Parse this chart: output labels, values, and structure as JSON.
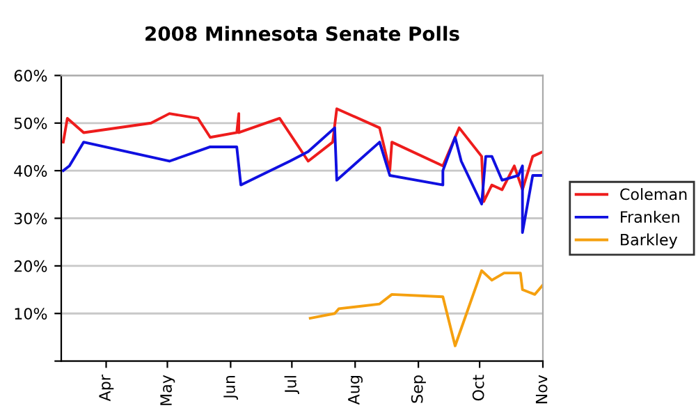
{
  "chart_data": {
    "type": "line",
    "title": "2008 Minnesota Senate Polls",
    "xlim": [
      "2008-03-10",
      "2008-11-01"
    ],
    "xticks": [
      {
        "value": "2008-04-01",
        "label": "Apr"
      },
      {
        "value": "2008-05-01",
        "label": "May"
      },
      {
        "value": "2008-06-01",
        "label": "Jun"
      },
      {
        "value": "2008-07-01",
        "label": "Jul"
      },
      {
        "value": "2008-08-01",
        "label": "Aug"
      },
      {
        "value": "2008-09-01",
        "label": "Sep"
      },
      {
        "value": "2008-10-01",
        "label": "Oct"
      },
      {
        "value": "2008-11-01",
        "label": "Nov"
      }
    ],
    "ylim": [
      0,
      60
    ],
    "yticks": [
      {
        "value": 0,
        "label": null
      },
      {
        "value": 10,
        "label": "10%"
      },
      {
        "value": 20,
        "label": "20%"
      },
      {
        "value": 30,
        "label": "30%"
      },
      {
        "value": 40,
        "label": "40%"
      },
      {
        "value": 50,
        "label": "50%"
      },
      {
        "value": 60,
        "label": "60%"
      }
    ],
    "grid": "y",
    "legend": "right",
    "marker": "none",
    "line_style": "solid",
    "series": [
      {
        "name": "Coleman",
        "color": "#ee1c1c",
        "x": [
          "2008-03-11",
          "2008-03-13",
          "2008-03-21",
          "2008-04-23",
          "2008-05-02",
          "2008-05-16",
          "2008-05-22",
          "2008-06-04",
          "2008-06-05",
          "2008-06-05",
          "2008-06-25",
          "2008-07-09",
          "2008-07-21",
          "2008-07-23",
          "2008-08-13",
          "2008-08-18",
          "2008-08-19",
          "2008-09-13",
          "2008-09-21",
          "2008-10-02",
          "2008-10-03",
          "2008-10-07",
          "2008-10-12",
          "2008-10-18",
          "2008-10-22",
          "2008-10-27",
          "2008-11-01"
        ],
        "values": [
          46,
          51,
          48,
          50,
          52,
          51,
          47,
          48,
          52,
          48,
          51,
          42,
          46,
          53,
          49,
          40,
          46,
          41,
          49,
          43,
          33.5,
          37,
          36,
          41,
          36,
          43,
          44
        ]
      },
      {
        "name": "Franken",
        "color": "#1010e0",
        "x": [
          "2008-03-11",
          "2008-03-14",
          "2008-03-21",
          "2008-05-02",
          "2008-05-22",
          "2008-06-04",
          "2008-06-06",
          "2008-06-30",
          "2008-07-09",
          "2008-07-22",
          "2008-07-23",
          "2008-08-13",
          "2008-08-18",
          "2008-09-13",
          "2008-09-13",
          "2008-09-19",
          "2008-09-22",
          "2008-10-02",
          "2008-10-04",
          "2008-10-07",
          "2008-10-12",
          "2008-10-20",
          "2008-10-22",
          "2008-10-22",
          "2008-10-27",
          "2008-11-01"
        ],
        "values": [
          40,
          41,
          46,
          42,
          45,
          45,
          37,
          42,
          44,
          49,
          38,
          46,
          39,
          37,
          40,
          47,
          42,
          33,
          43,
          43,
          38,
          39,
          41,
          27,
          39,
          39
        ]
      },
      {
        "name": "Barkley",
        "color": "#f5a00f",
        "x": [
          "2008-07-10",
          "2008-07-22",
          "2008-07-24",
          "2008-08-13",
          "2008-08-19",
          "2008-09-13",
          "2008-09-19",
          "2008-10-02",
          "2008-10-07",
          "2008-10-13",
          "2008-10-21",
          "2008-10-22",
          "2008-10-28",
          "2008-11-01"
        ],
        "values": [
          9,
          10,
          11,
          12,
          14,
          13.5,
          3.2,
          19,
          17,
          18.5,
          18.5,
          15,
          14,
          16
        ]
      }
    ]
  }
}
